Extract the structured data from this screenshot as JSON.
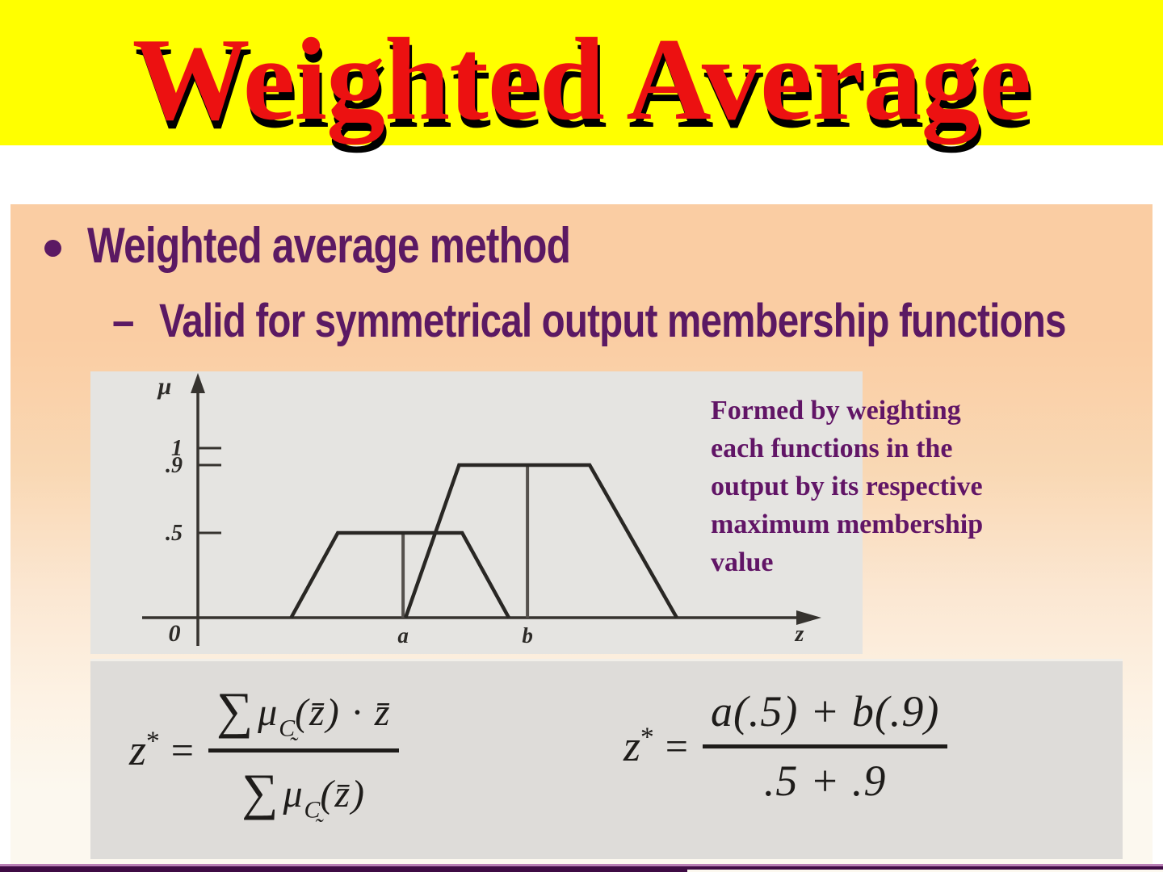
{
  "title": {
    "text": "Weighted Average"
  },
  "bullets": {
    "level1_text": "Weighted average method",
    "level2_marker": "–",
    "level2_text": "Valid for symmetrical output membership functions"
  },
  "annotation": {
    "lines": [
      "Formed by weighting",
      "each functions in the",
      "output by its respective",
      "maximum membership",
      "value"
    ]
  },
  "chart_data": {
    "type": "line",
    "description": "Two symmetrical trapezoidal output membership functions; each is weighted by its maximum membership value (0.5 at z=a, 0.9 at z=b).",
    "x_axis_label": "z",
    "y_axis_label": "μ",
    "origin_label": "0",
    "x_range": [
      0,
      10
    ],
    "y_range": [
      0,
      1
    ],
    "grid": false,
    "y_ticks": [
      {
        "value": 1,
        "label": "1"
      },
      {
        "value": 0.9,
        "label": ".9"
      },
      {
        "value": 0.5,
        "label": ".5"
      }
    ],
    "series": [
      {
        "name": "membership function with max 0.5",
        "points": [
          [
            1.5,
            0
          ],
          [
            2.25,
            0.5
          ],
          [
            4.25,
            0.5
          ],
          [
            5.0,
            0
          ]
        ]
      },
      {
        "name": "membership function with max 0.9",
        "points": [
          [
            3.34,
            0
          ],
          [
            4.2,
            0.9
          ],
          [
            6.3,
            0.9
          ],
          [
            7.7,
            0
          ]
        ]
      }
    ],
    "marker_lines": [
      {
        "x": 3.3,
        "max": 0.5,
        "label": "a"
      },
      {
        "x": 5.3,
        "max": 0.9,
        "label": "b"
      }
    ]
  },
  "formulas": {
    "symbolic": {
      "lhs_base": "z",
      "lhs_sup": "*",
      "equals": "=",
      "numerator_tokens": [
        {
          "text": "∑",
          "style": "sum"
        },
        {
          "text": "μ",
          "style": "it"
        },
        {
          "text": "C̰",
          "style": "sub"
        },
        {
          "text": "(z̄) · z̄",
          "style": "it"
        }
      ],
      "denominator_tokens": [
        {
          "text": "∑",
          "style": "sum"
        },
        {
          "text": "μ",
          "style": "it"
        },
        {
          "text": "C̰",
          "style": "sub"
        },
        {
          "text": "(z̄)",
          "style": "it"
        }
      ]
    },
    "numeric": {
      "lhs_base": "z",
      "lhs_sup": "*",
      "equals": "=",
      "numerator": "a(.5) + b(.9)",
      "denominator": ".5 + .9"
    }
  },
  "colors": {
    "banner_yellow": "#FFFF00",
    "title_red": "#EC1111",
    "title_shadow": "#000000",
    "heading_purple": "#5B1963",
    "annotation_purple": "#611566",
    "panel_peach_top": "#FACDA3",
    "panel_cream_bottom": "#FCF8EF",
    "scan_gray_chart": "#E5E4E1",
    "scan_gray_formula": "#DEDCD9",
    "divider_dark_purple": "#3F0B44",
    "divider_light_line": "#B97FB5"
  }
}
